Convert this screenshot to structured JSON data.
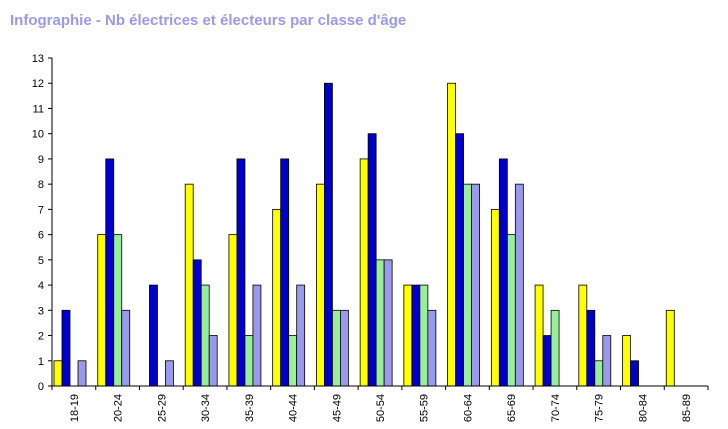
{
  "chart_data": {
    "type": "bar",
    "title": "Infographie - Nb électrices et électeurs par classe d'âge",
    "xlabel": "",
    "ylabel": "",
    "ylim": [
      0,
      13
    ],
    "yticks": [
      0,
      1,
      2,
      3,
      4,
      5,
      6,
      7,
      8,
      9,
      10,
      11,
      12,
      13
    ],
    "grid": false,
    "legend": "none",
    "categories": [
      "18-19",
      "20-24",
      "25-29",
      "30-34",
      "35-39",
      "40-44",
      "45-49",
      "50-54",
      "55-59",
      "60-64",
      "65-69",
      "70-74",
      "75-79",
      "80-84",
      "85-89"
    ],
    "series": [
      {
        "color": "#ffff00",
        "values": [
          1,
          6,
          0,
          8,
          6,
          7,
          8,
          9,
          4,
          12,
          7,
          4,
          4,
          2,
          3
        ]
      },
      {
        "color": "#0000cc",
        "values": [
          3,
          9,
          4,
          5,
          9,
          9,
          12,
          10,
          4,
          10,
          9,
          2,
          3,
          1,
          0
        ]
      },
      {
        "color": "#99ee99",
        "values": [
          0,
          6,
          0,
          4,
          2,
          2,
          3,
          5,
          4,
          8,
          6,
          3,
          1,
          0,
          0
        ]
      },
      {
        "color": "#9999ee",
        "values": [
          1,
          3,
          1,
          2,
          4,
          4,
          3,
          5,
          3,
          8,
          8,
          0,
          2,
          0,
          0
        ]
      }
    ]
  }
}
